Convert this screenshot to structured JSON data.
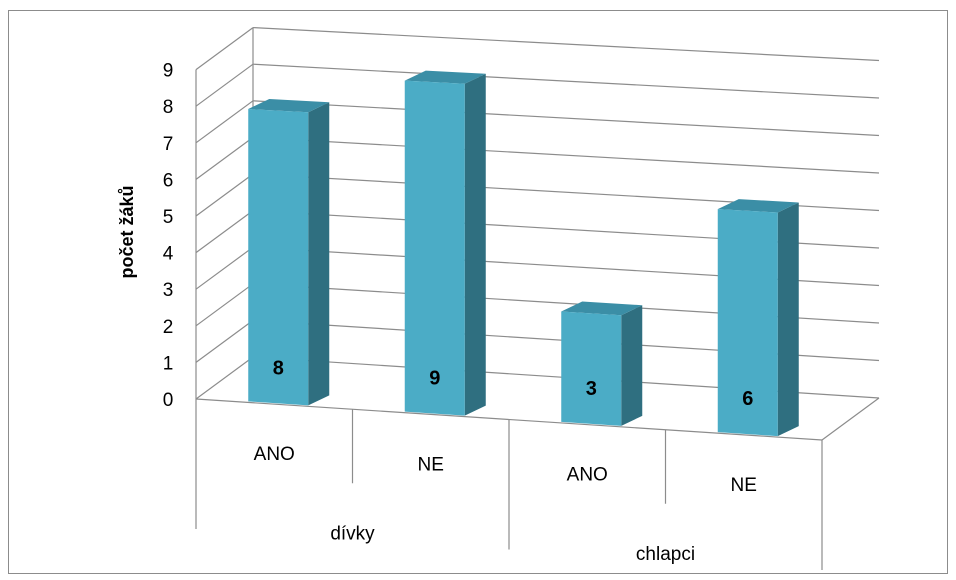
{
  "chart_data": {
    "type": "bar",
    "style": "3d-column",
    "categories": [
      {
        "label": "ANO",
        "group": "dívky"
      },
      {
        "label": "NE",
        "group": "dívky"
      },
      {
        "label": "ANO",
        "group": "chlapci"
      },
      {
        "label": "NE",
        "group": "chlapci"
      }
    ],
    "groups": [
      "dívky",
      "chlapci"
    ],
    "values": [
      8,
      9,
      3,
      6
    ],
    "data_labels": [
      "8",
      "9",
      "3",
      "6"
    ],
    "ylabel": "počet žáků",
    "ylim": [
      0,
      9
    ],
    "yticks": [
      "0",
      "1",
      "2",
      "3",
      "4",
      "5",
      "6",
      "7",
      "8",
      "9"
    ],
    "grid": true,
    "legend": "none"
  },
  "colors": {
    "bar_front": "#4bacc6",
    "bar_side": "#2f6f80",
    "bar_top": "#3b8ea6",
    "grid": "#8c8c8c",
    "frame": "#8c8c8c"
  }
}
